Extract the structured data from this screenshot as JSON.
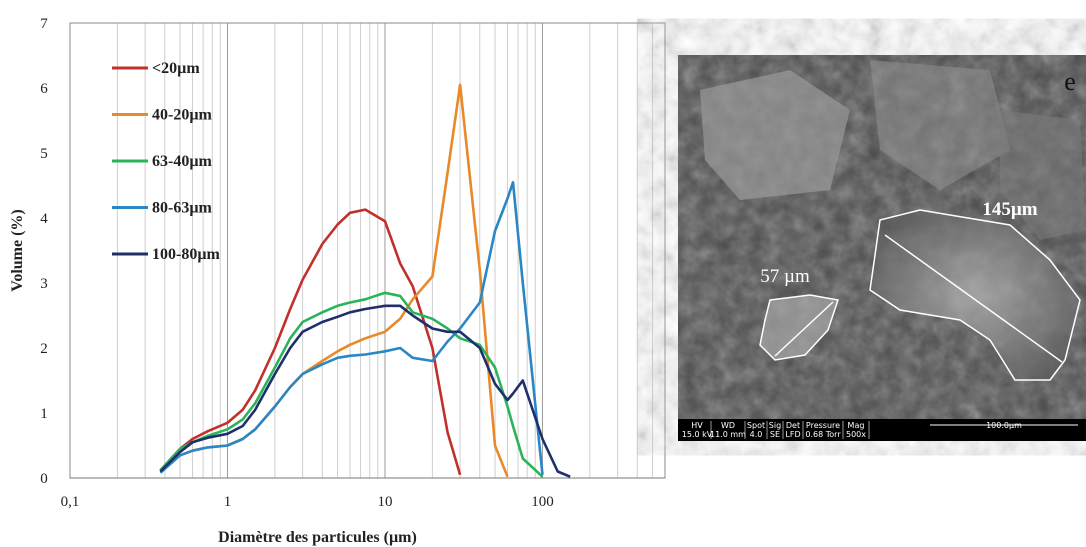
{
  "chart_data": {
    "type": "line",
    "x_label": "Diamètre des particules (µm)",
    "y_label": "Volume (%)",
    "x": [
      0.375,
      0.5,
      0.6,
      0.75,
      1,
      1.25,
      1.5,
      2,
      2.5,
      3,
      4,
      5,
      6,
      7.5,
      10,
      12.5,
      15,
      20,
      25,
      30,
      40,
      50,
      60,
      65,
      75,
      100,
      125,
      150
    ],
    "series": [
      {
        "name": "<20µm",
        "color": "#c0312b",
        "values": [
          0.12,
          0.45,
          0.6,
          0.72,
          0.85,
          1.05,
          1.35,
          2.0,
          2.6,
          3.05,
          3.6,
          3.9,
          4.08,
          4.13,
          3.95,
          3.3,
          2.95,
          2.0,
          0.7,
          0.05,
          null,
          null,
          null,
          null,
          null,
          null,
          null,
          null
        ]
      },
      {
        "name": "40-20µm",
        "color": "#e8892a",
        "values": [
          0.1,
          0.35,
          0.42,
          0.47,
          0.5,
          0.6,
          0.75,
          1.1,
          1.4,
          1.6,
          1.8,
          1.95,
          2.05,
          2.15,
          2.25,
          2.45,
          2.75,
          3.1,
          4.7,
          6.05,
          3.2,
          0.5,
          0.02,
          null,
          null,
          null,
          null,
          null
        ]
      },
      {
        "name": "63-40µm",
        "color": "#2bb35a",
        "values": [
          0.12,
          0.45,
          0.55,
          0.65,
          0.75,
          0.9,
          1.15,
          1.7,
          2.15,
          2.4,
          2.55,
          2.65,
          2.7,
          2.75,
          2.85,
          2.8,
          2.55,
          2.45,
          2.3,
          2.15,
          2.05,
          1.7,
          1.1,
          0.8,
          0.3,
          0.02,
          null,
          null
        ]
      },
      {
        "name": "80-63µm",
        "color": "#2b86c5",
        "values": [
          0.08,
          0.35,
          0.42,
          0.47,
          0.5,
          0.6,
          0.75,
          1.1,
          1.4,
          1.6,
          1.75,
          1.85,
          1.88,
          1.9,
          1.95,
          2.0,
          1.85,
          1.8,
          2.1,
          2.3,
          2.7,
          3.8,
          4.3,
          4.55,
          3.0,
          0.05,
          null,
          null
        ]
      },
      {
        "name": "100-80µm",
        "color": "#1f2f6b",
        "values": [
          0.1,
          0.4,
          0.55,
          0.62,
          0.68,
          0.8,
          1.05,
          1.6,
          2.0,
          2.25,
          2.4,
          2.48,
          2.55,
          2.6,
          2.65,
          2.65,
          2.5,
          2.3,
          2.25,
          2.25,
          2.0,
          1.45,
          1.2,
          1.3,
          1.5,
          0.6,
          0.1,
          0.02
        ]
      }
    ],
    "log_x": true,
    "xlim": [
      0.1,
      600
    ],
    "xticks": [
      {
        "value": 0.1,
        "label": "0,1"
      },
      1,
      10,
      100
    ],
    "minor_xticks": [
      0.2,
      0.3,
      0.4,
      0.5,
      0.6,
      0.7,
      0.8,
      0.9,
      2,
      3,
      4,
      5,
      6,
      7,
      8,
      9,
      20,
      30,
      40,
      50,
      60,
      70,
      80,
      90,
      200,
      300,
      400,
      500
    ],
    "ylim": [
      0,
      7
    ],
    "yticks": [
      0,
      1,
      2,
      3,
      4,
      5,
      6,
      7
    ],
    "grid": true,
    "legend": "top-left"
  },
  "image": {
    "panel_label": "e",
    "annotations": [
      "145µm",
      "57 µm"
    ],
    "info_bar": [
      {
        "label": "HV",
        "value": "15.0 kV"
      },
      {
        "label": "WD",
        "value": "11.0 mm"
      },
      {
        "label": "Spot",
        "value": "4.0"
      },
      {
        "label": "Sig",
        "value": "SE"
      },
      {
        "label": "Det",
        "value": "LFD"
      },
      {
        "label": "Pressure",
        "value": "0.68 Torr"
      },
      {
        "label": "Mag",
        "value": "500x"
      }
    ],
    "scale_bar": "100.0µm"
  }
}
